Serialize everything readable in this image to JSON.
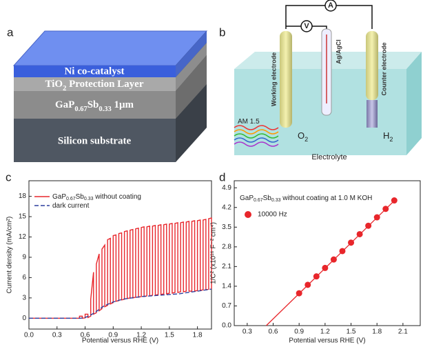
{
  "panel_labels": [
    "a",
    "b",
    "c",
    "d"
  ],
  "diagram_a": {
    "layers": [
      "Ni co-catalyst",
      "TiO2 Protection Layer",
      "GaP0.67Sb0.33 1μm",
      "Silicon substrate"
    ]
  },
  "diagram_b": {
    "ammeter": "A",
    "voltmeter": "V",
    "working": "Working electrode",
    "reference": "Ag/AgCl",
    "counter": "Counter electrode",
    "light": "AM 1.5",
    "anode_gas": "O2",
    "cathode_gas": "H2",
    "electrolyte": "Electrolyte"
  },
  "chart_data": [
    {
      "type": "line",
      "x_label": "Potential versus RHE (V)",
      "y_label": "Current density (mA/cm²)",
      "xlim": [
        0,
        1.95
      ],
      "ylim": [
        -1.6,
        20.3
      ],
      "xticks": [
        {
          "value": 0,
          "label": "0.0"
        },
        0.3,
        0.6,
        0.9,
        1.2,
        1.5,
        1.8
      ],
      "yticks": [
        0,
        3,
        6,
        9,
        12,
        15,
        18
      ],
      "series": [
        {
          "name": "GaP0.67Sb0.33 without coating",
          "color": "#e8262b",
          "linestyle": "solid",
          "x": [
            0,
            0.5,
            0.54,
            0.54,
            0.57,
            0.57,
            0.6,
            0.6,
            0.63,
            0.63,
            0.66,
            0.66,
            0.69,
            0.69,
            0.72,
            0.72,
            0.75,
            0.75,
            0.78,
            0.78,
            0.81,
            0.81,
            0.84,
            0.84,
            0.87,
            0.87,
            0.9,
            0.9,
            0.93,
            0.93,
            0.96,
            0.96,
            0.99,
            0.99,
            1.02,
            1.02,
            1.05,
            1.05,
            1.08,
            1.08,
            1.11,
            1.11,
            1.14,
            1.14,
            1.17,
            1.17,
            1.2,
            1.2,
            1.23,
            1.23,
            1.26,
            1.26,
            1.29,
            1.29,
            1.32,
            1.32,
            1.35,
            1.35,
            1.38,
            1.38,
            1.41,
            1.41,
            1.44,
            1.44,
            1.47,
            1.47,
            1.5,
            1.5,
            1.53,
            1.53,
            1.56,
            1.56,
            1.59,
            1.59,
            1.62,
            1.62,
            1.65,
            1.65,
            1.68,
            1.68,
            1.71,
            1.71,
            1.74,
            1.74,
            1.77,
            1.77,
            1.8,
            1.8,
            1.83,
            1.83,
            1.86,
            1.86,
            1.89,
            1.89,
            1.92,
            1.92,
            1.95,
            1.95
          ],
          "values": [
            0,
            0,
            0,
            0.3,
            0.3,
            0,
            0.05,
            0.6,
            0.6,
            0.1,
            0.3,
            2.8,
            6.8,
            0.6,
            0.8,
            8.0,
            9.5,
            1.1,
            1.4,
            10.2,
            10.8,
            1.7,
            1.9,
            11.6,
            11.8,
            2.1,
            2.3,
            12.2,
            12.3,
            2.5,
            2.6,
            12.5,
            12.6,
            2.7,
            2.8,
            12.8,
            12.9,
            2.9,
            3.0,
            13.0,
            13.1,
            3.0,
            3.1,
            13.2,
            13.3,
            3.1,
            3.2,
            13.4,
            13.5,
            3.2,
            3.3,
            13.5,
            13.6,
            3.3,
            3.4,
            13.6,
            13.7,
            3.4,
            3.5,
            13.7,
            13.8,
            3.5,
            3.6,
            13.8,
            13.9,
            3.6,
            3.7,
            13.9,
            14.0,
            3.7,
            3.8,
            14.0,
            14.1,
            3.8,
            3.9,
            14.1,
            14.2,
            3.9,
            4.0,
            14.2,
            14.3,
            4.0,
            4.0,
            14.3,
            14.4,
            4.0,
            4.1,
            14.4,
            14.5,
            4.1,
            4.2,
            14.5,
            14.6,
            4.2,
            4.3,
            14.7,
            14.8,
            4.3
          ]
        },
        {
          "name": "dark current",
          "color": "#2b3f9e",
          "linestyle": "dashed",
          "x": [
            0,
            0.3,
            0.55,
            0.6,
            0.65,
            0.7,
            0.75,
            0.8,
            0.9,
            1.0,
            1.1,
            1.2,
            1.3,
            1.4,
            1.5,
            1.6,
            1.7,
            1.8,
            1.9,
            1.95
          ],
          "values": [
            0,
            0,
            0,
            0.1,
            0.4,
            0.8,
            1.3,
            1.8,
            2.4,
            2.8,
            3.0,
            3.2,
            3.3,
            3.4,
            3.5,
            3.6,
            3.8,
            4.0,
            4.2,
            4.3
          ]
        }
      ]
    },
    {
      "type": "scatter",
      "annotation": "GaP0.67Sb0.33 without coating at 1.0 M KOH",
      "x_label": "Potential versus RHE (V)",
      "y_label": "1/C² (x10¹⁶ F⁻² cm⁴)",
      "xlim": [
        0.15,
        2.3
      ],
      "ylim": [
        0,
        5.15
      ],
      "xticks": [
        0.3,
        0.6,
        0.9,
        1.2,
        1.5,
        1.8,
        2.1
      ],
      "yticks": [
        {
          "value": 0,
          "label": "0.0"
        },
        0.7,
        1.4,
        2.1,
        2.8,
        3.5,
        4.2,
        4.9
      ],
      "series": [
        {
          "name": "10000 Hz",
          "color": "#e8262b",
          "x": [
            0.9,
            1.0,
            1.1,
            1.2,
            1.3,
            1.4,
            1.5,
            1.6,
            1.7,
            1.8,
            1.9,
            2.0
          ],
          "values": [
            1.15,
            1.45,
            1.75,
            2.05,
            2.35,
            2.65,
            2.95,
            3.25,
            3.55,
            3.85,
            4.15,
            4.45
          ]
        }
      ],
      "fit_line": {
        "color": "#e8262b",
        "x": [
          0.52,
          2.0
        ],
        "values": [
          0,
          4.44
        ]
      }
    }
  ]
}
